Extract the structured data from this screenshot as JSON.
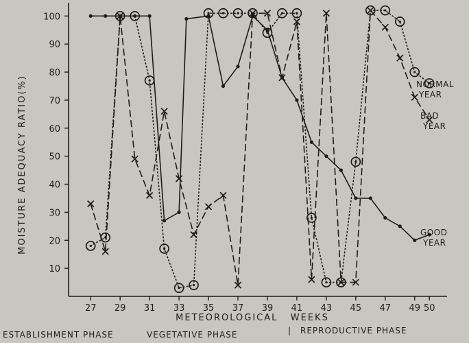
{
  "colors": {
    "paper": "#c9c5c0",
    "ink": "#1c1c1c"
  },
  "chart_data": {
    "type": "line",
    "title": "",
    "xlabel": "METEOROLOGICAL   WEEKS",
    "ylabel": "MOISTURE  ADEQUACY  RATIO(%)",
    "xlim": [
      25.5,
      51.2
    ],
    "ylim": [
      0,
      104
    ],
    "x_ticks": [
      27,
      29,
      31,
      33,
      35,
      37,
      39,
      41,
      43,
      45,
      47,
      49,
      50
    ],
    "y_ticks": [
      10,
      20,
      30,
      40,
      50,
      60,
      70,
      80,
      90,
      100
    ],
    "grid": false,
    "series": [
      {
        "name": "GOOD YEAR",
        "label_lines": [
          "GOOD",
          "YEAR"
        ],
        "line_style": "solid",
        "marker": "dot",
        "x": [
          27,
          28,
          29,
          30,
          31,
          32,
          33,
          33.5,
          35,
          36,
          37,
          38,
          39,
          40,
          41,
          42,
          43,
          44,
          45,
          46,
          47,
          48,
          49,
          50
        ],
        "y": [
          100,
          100,
          100,
          100,
          100,
          27,
          30,
          99,
          100,
          75,
          82,
          100,
          95,
          78,
          70,
          55,
          50,
          45,
          35,
          35,
          28,
          25,
          20,
          22
        ]
      },
      {
        "name": "NORMAL YEAR",
        "label_lines": [
          "NORMAL",
          "YEAR"
        ],
        "line_style": "dotted",
        "marker": "circle",
        "x": [
          27,
          28,
          29,
          30,
          31,
          32,
          33,
          34,
          35,
          36,
          37,
          38,
          39,
          40,
          41,
          42,
          43,
          44,
          45,
          46,
          47,
          48,
          49,
          50
        ],
        "y": [
          18,
          21,
          100,
          100,
          77,
          17,
          3,
          4,
          101,
          101,
          101,
          101,
          94,
          101,
          101,
          28,
          5,
          5,
          48,
          102,
          102,
          98,
          80,
          76
        ]
      },
      {
        "name": "BAD YEAR",
        "label_lines": [
          "BAD",
          "YEAR"
        ],
        "line_style": "dashed",
        "marker": "x",
        "x": [
          27,
          28,
          29,
          30,
          31,
          32,
          33,
          34,
          35,
          36,
          37,
          38,
          39,
          40,
          41,
          42,
          43,
          44,
          45,
          46,
          47,
          48,
          49,
          50
        ],
        "y": [
          33,
          16,
          100,
          49,
          36,
          66,
          42,
          22,
          32,
          36,
          4,
          101,
          101,
          78,
          98,
          6,
          101,
          5,
          5,
          102,
          96,
          85,
          71,
          63
        ]
      }
    ],
    "phases": [
      "ESTABLISHMENT PHASE",
      "VEGETATIVE PHASE",
      "REPRODUCTIVE PHASE"
    ],
    "phase_separator": "|"
  }
}
